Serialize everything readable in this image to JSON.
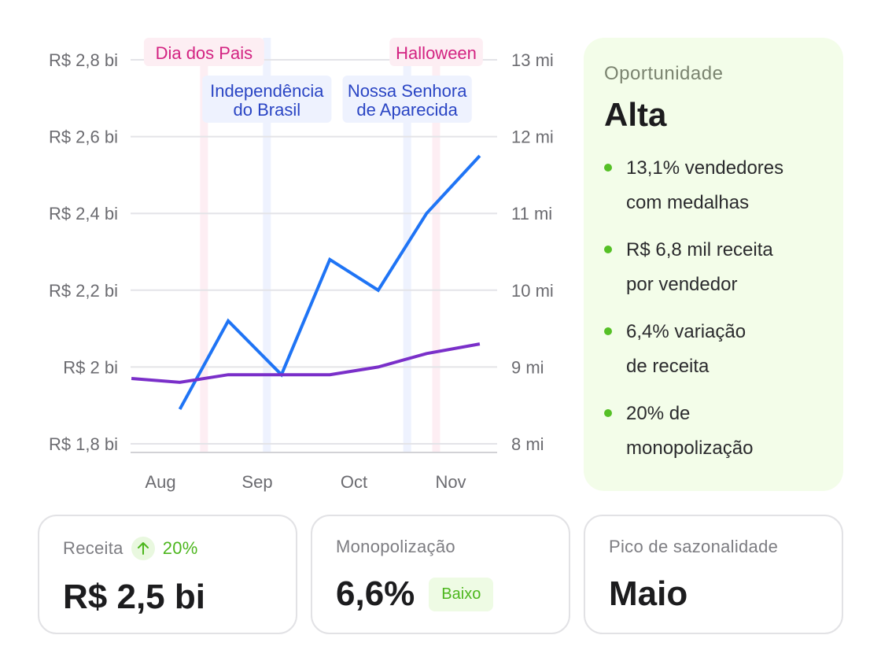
{
  "chart_data": {
    "type": "line",
    "categories": [
      "Aug",
      "Sep",
      "Oct",
      "Nov"
    ],
    "left_axis": {
      "ticks": [
        "R$ 1,8 bi",
        "R$ 2 bi",
        "R$ 2,2 bi",
        "R$ 2,4 bi",
        "R$ 2,6 bi",
        "R$ 2,8 bi"
      ],
      "ylim": [
        1.8,
        2.8
      ]
    },
    "right_axis": {
      "ticks": [
        "8 mi",
        "9 mi",
        "10 mi",
        "11 mi",
        "12 mi",
        "13 mi"
      ],
      "ylim": [
        8,
        13
      ]
    },
    "series": [
      {
        "axis": "left",
        "color": "#1f74f5",
        "points": [
          [
            0.2,
            1.89
          ],
          [
            0.7,
            2.12
          ],
          [
            1.25,
            1.98
          ],
          [
            1.75,
            2.28
          ],
          [
            2.25,
            2.2
          ],
          [
            2.75,
            2.4
          ],
          [
            3.3,
            2.55
          ]
        ]
      },
      {
        "axis": "left",
        "color": "#7a2fc9",
        "points": [
          [
            -0.3,
            1.97
          ],
          [
            0.2,
            1.96
          ],
          [
            0.7,
            1.98
          ],
          [
            1.25,
            1.98
          ],
          [
            1.75,
            1.98
          ],
          [
            2.25,
            2.0
          ],
          [
            2.75,
            2.035
          ],
          [
            3.3,
            2.06
          ]
        ]
      }
    ],
    "events": [
      {
        "name": "Dia dos Pais",
        "x": 0.45,
        "type": "holiday",
        "row": 1
      },
      {
        "name": "Independência\ndo Brasil",
        "x": 1.1,
        "type": "national",
        "row": 2
      },
      {
        "name": "Nossa Senhora\nde Aparecida",
        "x": 2.55,
        "type": "national",
        "row": 2
      },
      {
        "name": "Halloween",
        "x": 2.85,
        "type": "holiday",
        "row": 1
      }
    ],
    "grid": true
  },
  "colors": {
    "holiday_band": "#fdeef3",
    "holiday_text": "#d32382",
    "national_band": "#eef2fe",
    "national_text": "#2a45c4",
    "accent_green": "#55c026"
  },
  "opportunity": {
    "title": "Oportunidade",
    "value": "Alta",
    "items": [
      "13,1% vendedores\ncom medalhas",
      "R$ 6,8 mil receita\npor vendedor",
      "6,4% variação\nde receita",
      "20% de\nmonopolização"
    ]
  },
  "stats": {
    "revenue": {
      "label": "Receita",
      "trend": "20%",
      "trend_icon": "arrow-up-icon",
      "value": "R$ 2,5 bi"
    },
    "monopoly": {
      "label": "Monopolização",
      "value": "6,6%",
      "badge": "Baixo"
    },
    "seasonality": {
      "label": "Pico de sazonalidade",
      "value": "Maio"
    }
  }
}
